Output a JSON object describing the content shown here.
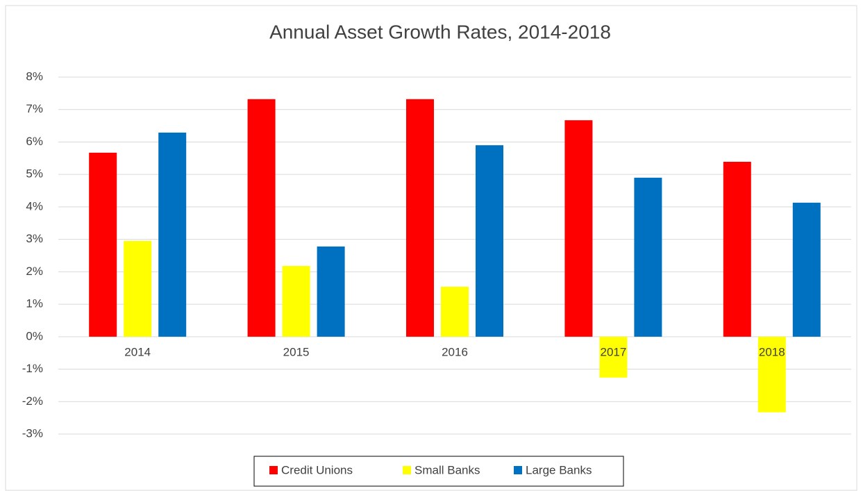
{
  "chart_data": {
    "type": "bar",
    "title": "Annual Asset Growth Rates, 2014-2018",
    "categories": [
      "2014",
      "2015",
      "2016",
      "2017",
      "2018"
    ],
    "series": [
      {
        "name": "Credit Unions",
        "color": "#ff0000",
        "values": [
          5.67,
          7.32,
          7.32,
          6.67,
          5.39
        ]
      },
      {
        "name": "Small Banks",
        "color": "#ffff00",
        "values": [
          2.95,
          2.18,
          1.54,
          -1.26,
          -2.33
        ]
      },
      {
        "name": "Large Banks",
        "color": "#0070c0",
        "values": [
          6.29,
          2.78,
          5.9,
          4.9,
          4.13
        ]
      }
    ],
    "ylim": [
      -3,
      8
    ],
    "yticks": [
      {
        "value": -3,
        "label": "-3%"
      },
      {
        "value": -2,
        "label": "-2%"
      },
      {
        "value": -1,
        "label": "-1%"
      },
      {
        "value": 0,
        "label": "0%"
      },
      {
        "value": 1,
        "label": "1%"
      },
      {
        "value": 2,
        "label": "2%"
      },
      {
        "value": 3,
        "label": "3%"
      },
      {
        "value": 4,
        "label": "4%"
      },
      {
        "value": 5,
        "label": "5%"
      },
      {
        "value": 6,
        "label": "6%"
      },
      {
        "value": 7,
        "label": "7%"
      },
      {
        "value": 8,
        "label": "8%"
      }
    ],
    "grid": true,
    "legend": "bottom"
  }
}
